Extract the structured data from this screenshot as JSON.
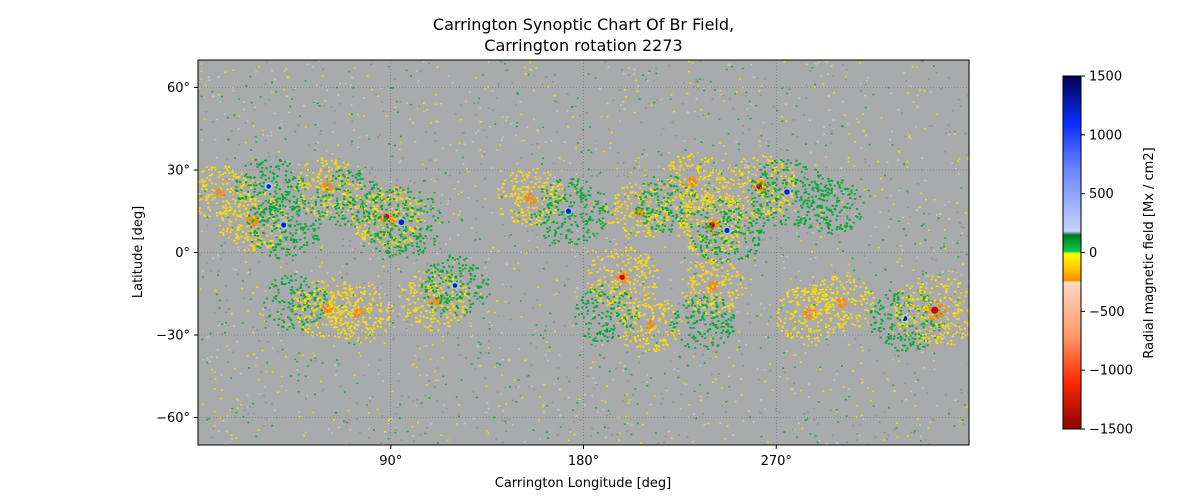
{
  "chart_data": {
    "type": "heatmap",
    "title": "Carrington Synoptic Chart Of Br Field,",
    "subtitle": "Carrington rotation 2273",
    "xlabel": "Carrington Longitude [deg]",
    "ylabel": "Latitude [deg]",
    "xlim": [
      0,
      360
    ],
    "ylim": [
      -70,
      70
    ],
    "x_ticks": [
      {
        "value": 90,
        "label": "90°"
      },
      {
        "value": 180,
        "label": "180°"
      },
      {
        "value": 270,
        "label": "270°"
      }
    ],
    "y_ticks": [
      {
        "value": 60,
        "label": "60°"
      },
      {
        "value": 30,
        "label": "30°"
      },
      {
        "value": 0,
        "label": "0°"
      },
      {
        "value": -30,
        "label": "−30°"
      },
      {
        "value": -60,
        "label": "−60°"
      }
    ],
    "grid": true,
    "colorbar": {
      "label": "Radial magnetic field [Mx / cm2]",
      "range": [
        -1500,
        1500
      ],
      "ticks": [
        {
          "value": 1500,
          "label": "1500"
        },
        {
          "value": 1000,
          "label": "1000"
        },
        {
          "value": 500,
          "label": "500"
        },
        {
          "value": 0,
          "label": "0"
        },
        {
          "value": -500,
          "label": "−500"
        },
        {
          "value": -1000,
          "label": "−1000"
        },
        {
          "value": -1500,
          "label": "−1500"
        }
      ],
      "stops": [
        {
          "value": -1500,
          "color": "#8b0000"
        },
        {
          "value": -1100,
          "color": "#ff2a00"
        },
        {
          "value": -700,
          "color": "#ff9a6a"
        },
        {
          "value": -250,
          "color": "#ffd8c2"
        },
        {
          "value": -240,
          "color": "#ff8c00"
        },
        {
          "value": -120,
          "color": "#ffd000"
        },
        {
          "value": -10,
          "color": "#ffff00"
        },
        {
          "value": 10,
          "color": "#00cc44"
        },
        {
          "value": 150,
          "color": "#007a1e"
        },
        {
          "value": 180,
          "color": "#c8d2ff"
        },
        {
          "value": 700,
          "color": "#6b86ff"
        },
        {
          "value": 1100,
          "color": "#0a2dff"
        },
        {
          "value": 1500,
          "color": "#000050"
        }
      ]
    },
    "colors": {
      "background_field": "#a9aaab",
      "positive_weak": "#00aa33",
      "positive_strong": "#0022cc",
      "negative_weak": "#ffdd00",
      "negative_mid": "#ff8800",
      "negative_strong": "#cc0000"
    },
    "regions": [
      {
        "polarity": "negative",
        "lon": 10,
        "lat": 22,
        "strength": 0.45
      },
      {
        "polarity": "negative",
        "lon": 25,
        "lat": 12,
        "strength": 0.6
      },
      {
        "polarity": "positive",
        "lon": 33,
        "lat": 24,
        "strength": 0.6
      },
      {
        "polarity": "positive",
        "lon": 40,
        "lat": 10,
        "strength": 0.75
      },
      {
        "polarity": "negative",
        "lon": 60,
        "lat": 24,
        "strength": 0.55
      },
      {
        "polarity": "positive",
        "lon": 70,
        "lat": 20,
        "strength": 0.55
      },
      {
        "polarity": "negative",
        "lon": 88,
        "lat": 13,
        "strength": 0.7
      },
      {
        "polarity": "positive",
        "lon": 95,
        "lat": 11,
        "strength": 0.9
      },
      {
        "polarity": "negative",
        "lon": 155,
        "lat": 20,
        "strength": 0.6
      },
      {
        "polarity": "positive",
        "lon": 173,
        "lat": 15,
        "strength": 0.8
      },
      {
        "polarity": "negative",
        "lon": 205,
        "lat": 15,
        "strength": 0.45
      },
      {
        "polarity": "positive",
        "lon": 218,
        "lat": 18,
        "strength": 0.5
      },
      {
        "polarity": "negative",
        "lon": 230,
        "lat": 26,
        "strength": 0.55
      },
      {
        "polarity": "negative",
        "lon": 240,
        "lat": 10,
        "strength": 0.7
      },
      {
        "polarity": "positive",
        "lon": 247,
        "lat": 8,
        "strength": 0.75
      },
      {
        "polarity": "negative",
        "lon": 262,
        "lat": 24,
        "strength": 0.7
      },
      {
        "polarity": "positive",
        "lon": 275,
        "lat": 22,
        "strength": 0.85
      },
      {
        "polarity": "positive",
        "lon": 295,
        "lat": 17,
        "strength": 0.5
      },
      {
        "polarity": "positive",
        "lon": 45,
        "lat": -18,
        "strength": 0.5
      },
      {
        "polarity": "negative",
        "lon": 60,
        "lat": -20,
        "strength": 0.6
      },
      {
        "polarity": "negative",
        "lon": 75,
        "lat": -22,
        "strength": 0.55
      },
      {
        "polarity": "negative",
        "lon": 110,
        "lat": -17,
        "strength": 0.6
      },
      {
        "polarity": "positive",
        "lon": 120,
        "lat": -12,
        "strength": 0.6
      },
      {
        "polarity": "positive",
        "lon": 190,
        "lat": -22,
        "strength": 0.5
      },
      {
        "polarity": "negative",
        "lon": 198,
        "lat": -9,
        "strength": 0.65
      },
      {
        "polarity": "negative",
        "lon": 210,
        "lat": -26,
        "strength": 0.45
      },
      {
        "polarity": "positive",
        "lon": 235,
        "lat": -25,
        "strength": 0.5
      },
      {
        "polarity": "negative",
        "lon": 240,
        "lat": -12,
        "strength": 0.5
      },
      {
        "polarity": "negative",
        "lon": 285,
        "lat": -22,
        "strength": 0.6
      },
      {
        "polarity": "negative",
        "lon": 300,
        "lat": -18,
        "strength": 0.5
      },
      {
        "polarity": "positive",
        "lon": 330,
        "lat": -24,
        "strength": 0.7
      },
      {
        "polarity": "negative",
        "lon": 344,
        "lat": -21,
        "strength": 0.95
      }
    ]
  }
}
